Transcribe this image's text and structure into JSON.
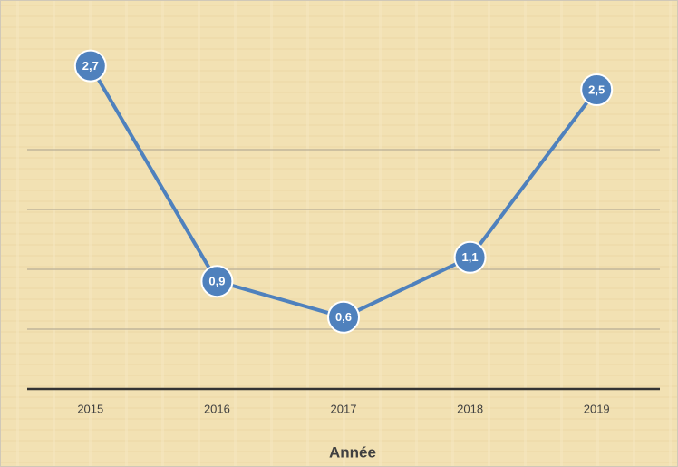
{
  "chart_data": {
    "type": "line",
    "categories": [
      "2015",
      "2016",
      "2017",
      "2018",
      "2019"
    ],
    "series": [
      {
        "color": "#4f81bd",
        "values": [
          2.7,
          0.9,
          0.6,
          1.1,
          2.5
        ],
        "value_labels": [
          "2,7",
          "0,9",
          "0,6",
          "1,1",
          "2,5"
        ]
      }
    ],
    "xlabel": "Année",
    "ylim": [
      0,
      3
    ],
    "yticks": [
      0,
      0.5,
      1,
      1.5,
      2
    ],
    "grid": true
  }
}
